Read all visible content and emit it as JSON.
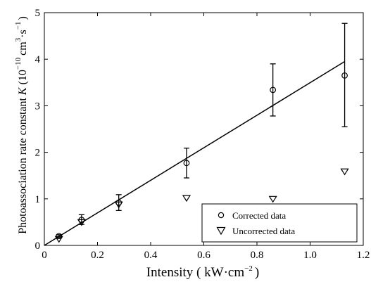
{
  "chart_data": {
    "type": "scatter",
    "xlabel": {
      "prefix": "Intensity ( kW",
      "middle": "cm",
      "exp": "−2",
      "suffix": ")"
    },
    "ylabel": {
      "prefix": "Photoassociation rate constant ",
      "symbol": "K",
      "paren_open": " (10",
      "exp1": "−10",
      "cm": "cm",
      "exp2": "3",
      "s": "s",
      "exp3": "−1",
      "paren_close": ")"
    },
    "xlim": [
      0,
      1.2
    ],
    "ylim": [
      0,
      5
    ],
    "xticks": [
      0,
      0.2,
      0.4,
      0.6,
      0.8,
      1.0,
      1.2
    ],
    "xtick_labels": [
      "0",
      "0.2",
      "0.4",
      "0.6",
      "0.8",
      "1.0",
      "1.2"
    ],
    "yticks": [
      0,
      1,
      2,
      3,
      4,
      5
    ],
    "ytick_labels": [
      "0",
      "1",
      "2",
      "3",
      "4",
      "5"
    ],
    "series": [
      {
        "name": "Corrected data",
        "marker": "circle",
        "x": [
          0.055,
          0.14,
          0.28,
          0.535,
          0.86,
          1.13
        ],
        "y": [
          0.2,
          0.55,
          0.92,
          1.77,
          3.34,
          3.65
        ],
        "yerr_low": [
          0.17,
          0.45,
          0.75,
          1.45,
          2.78,
          2.55
        ],
        "yerr_high": [
          0.23,
          0.66,
          1.09,
          2.09,
          3.9,
          4.77
        ]
      },
      {
        "name": "Uncorrected data",
        "marker": "triangle-down",
        "x": [
          0.055,
          0.14,
          0.28,
          0.535,
          0.86,
          1.13
        ],
        "y": [
          0.14,
          0.5,
          0.88,
          1.02,
          1.0,
          1.59
        ]
      }
    ],
    "fit_line": {
      "x": [
        0,
        1.13
      ],
      "y": [
        0,
        3.95
      ]
    },
    "legend_position": "bottom-right",
    "grid": false,
    "colors": {
      "line": "#000000",
      "background": "#ffffff"
    }
  }
}
